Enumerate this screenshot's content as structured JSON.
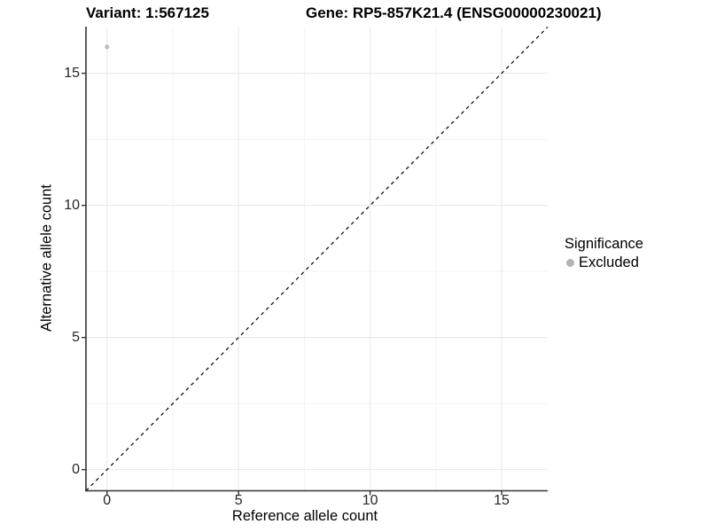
{
  "titles": {
    "variant": "Variant: 1:567125",
    "gene": "Gene: RP5-857K21.4 (ENSG00000230021)"
  },
  "chart_data": {
    "type": "scatter",
    "title_left": "Variant: 1:567125",
    "title_right": "Gene: RP5-857K21.4 (ENSG00000230021)",
    "xlabel": "Reference allele count",
    "ylabel": "Alternative allele count",
    "xlim": [
      -0.8,
      16.75
    ],
    "ylim": [
      -0.8,
      16.75
    ],
    "x_ticks": [
      0,
      5,
      10,
      15
    ],
    "y_ticks": [
      0,
      5,
      10,
      15
    ],
    "x_minor_ticks": [
      2.5,
      7.5,
      12.5
    ],
    "y_minor_ticks": [
      2.5,
      7.5,
      12.5
    ],
    "grid": true,
    "points": [
      {
        "x": 0,
        "y": 16,
        "series": "Excluded"
      }
    ],
    "reference_line": {
      "type": "identity",
      "style": "dashed",
      "dash": "4 4"
    },
    "legend": {
      "title": "Significance",
      "position": "right",
      "entries": [
        {
          "label": "Excluded",
          "color": "#b3b3b3",
          "marker": "circle"
        }
      ]
    },
    "colors": {
      "point": "#bebebe",
      "grid_major": "#e7e7e7",
      "grid_minor": "#f3f3f3",
      "axis_line": "#333333",
      "tick": "#333333",
      "dashed_line": "#000000",
      "background": "#ffffff"
    }
  }
}
